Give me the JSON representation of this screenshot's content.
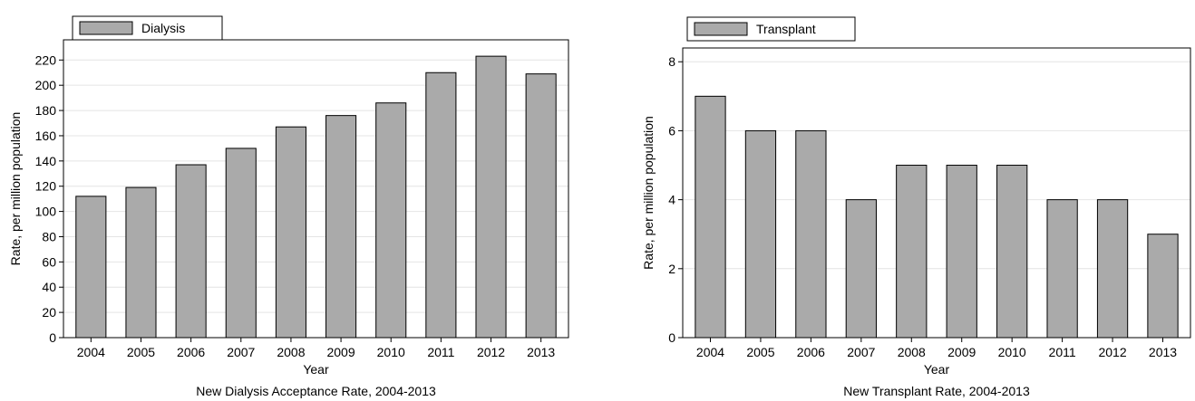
{
  "chart_data": [
    {
      "type": "bar",
      "caption": "New Dialysis Acceptance Rate, 2004-2013",
      "xlabel": "Year",
      "ylabel": "Rate, per million population",
      "categories": [
        "2004",
        "2005",
        "2006",
        "2007",
        "2008",
        "2009",
        "2010",
        "2011",
        "2012",
        "2013"
      ],
      "series": [
        {
          "name": "Dialysis",
          "values": [
            112,
            119,
            137,
            150,
            167,
            176,
            186,
            210,
            223,
            209
          ],
          "color": "#aaaaaa"
        }
      ],
      "ylim": [
        0,
        236
      ],
      "yticks": [
        0,
        20,
        40,
        60,
        80,
        100,
        120,
        140,
        160,
        180,
        200,
        220
      ],
      "grid": true,
      "legend": "top-left"
    },
    {
      "type": "bar",
      "caption": "New Transplant Rate, 2004-2013",
      "xlabel": "Year",
      "ylabel": "Rate, per million population",
      "categories": [
        "2004",
        "2005",
        "2006",
        "2007",
        "2008",
        "2009",
        "2010",
        "2011",
        "2012",
        "2013"
      ],
      "series": [
        {
          "name": "Transplant",
          "values": [
            7,
            6,
            6,
            4,
            5,
            5,
            5,
            4,
            4,
            3
          ],
          "color": "#aaaaaa"
        }
      ],
      "ylim": [
        0,
        8.4
      ],
      "yticks": [
        0,
        2,
        4,
        6,
        8
      ],
      "grid": true,
      "legend": "top-left"
    }
  ]
}
